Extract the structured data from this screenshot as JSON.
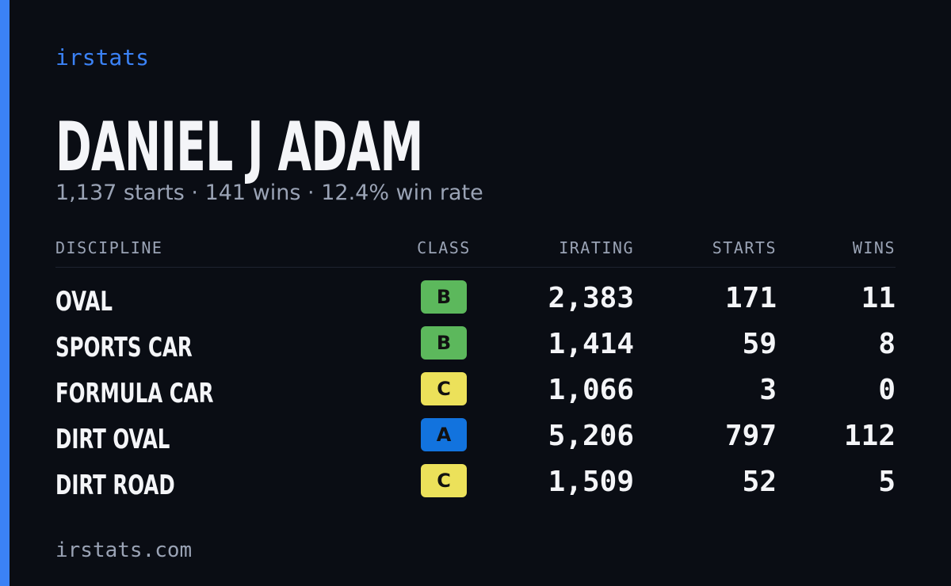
{
  "header": {
    "brand": "irstats",
    "name": "DANIEL J ADAM",
    "summary": "1,137 starts · 141 wins · 12.4% win rate"
  },
  "table": {
    "columns": [
      "DISCIPLINE",
      "CLASS",
      "IRATING",
      "STARTS",
      "WINS"
    ],
    "rows": [
      [
        "OVAL",
        "B",
        "2,383",
        "171",
        "11"
      ],
      [
        "SPORTS CAR",
        "B",
        "1,414",
        "59",
        "8"
      ],
      [
        "FORMULA CAR",
        "C",
        "1,066",
        "3",
        "0"
      ],
      [
        "DIRT OVAL",
        "A",
        "5,206",
        "797",
        "112"
      ],
      [
        "DIRT ROAD",
        "C",
        "1,509",
        "52",
        "5"
      ]
    ],
    "class_colors": {
      "A": "#1273de",
      "B": "#5cb85c",
      "C": "#ece15a"
    }
  },
  "footer": {
    "site": "irstats.com"
  }
}
